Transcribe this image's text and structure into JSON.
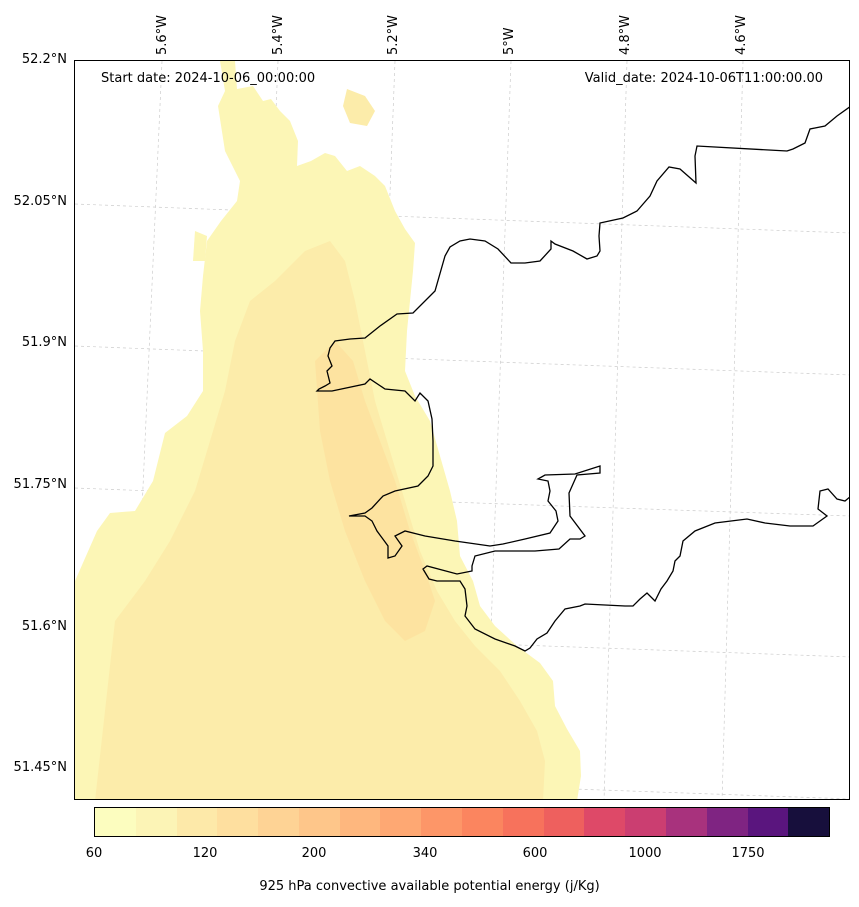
{
  "header": {
    "start_date": "Start date: 2024-10-06_00:00:00",
    "valid_date": "Valid_date: 2024-10-06T11:00:00.00"
  },
  "axes": {
    "lat_labels": [
      "52.2°N",
      "52.05°N",
      "51.9°N",
      "51.75°N",
      "51.6°N",
      "51.45°N"
    ],
    "lon_labels": [
      "5.6°W",
      "5.4°W",
      "5.2°W",
      "5°W",
      "4.8°W",
      "4.6°W"
    ],
    "lat_range": [
      51.42,
      52.2
    ],
    "lon_range": [
      -5.75,
      -4.4
    ],
    "grid": true
  },
  "colorbar": {
    "label": "925 hPa convective available potential energy (j/Kg)",
    "ticks": [
      "60",
      "120",
      "200",
      "340",
      "600",
      "1000",
      "1750"
    ],
    "colors": [
      "#fcfdbf",
      "#fcf4b6",
      "#fde9a9",
      "#fedf9f",
      "#fed395",
      "#fec68a",
      "#feb77e",
      "#fea873",
      "#fd9668",
      "#fb855f",
      "#f7725c",
      "#ee605e",
      "#de4968",
      "#cb3e71",
      "#a8327d",
      "#7f2482",
      "#5a157e",
      "#170f3c"
    ]
  },
  "field": {
    "base_color": "#fcf6b6",
    "mid_color": "#fcecaa",
    "high_color": "#fde3a0"
  }
}
